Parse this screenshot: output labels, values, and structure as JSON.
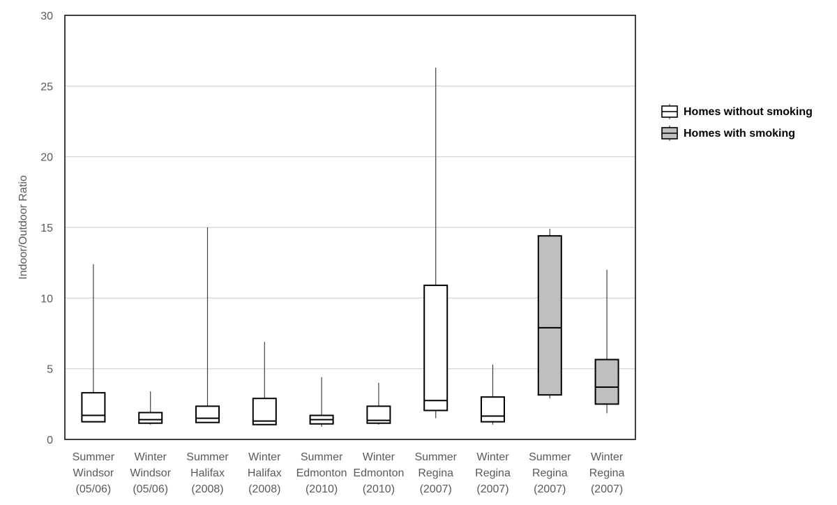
{
  "chart_data": {
    "type": "box",
    "ylabel": "Indoor/Outdoor Ratio",
    "ylim": [
      0,
      30
    ],
    "yticks": [
      0,
      5,
      10,
      15,
      20,
      25,
      30
    ],
    "grid": true,
    "legend_position": "right",
    "categories": [
      [
        "Summer",
        "Windsor",
        "(05/06)"
      ],
      [
        "Winter",
        "Windsor",
        "(05/06)"
      ],
      [
        "Summer",
        "Halifax",
        "(2008)"
      ],
      [
        "Winter",
        "Halifax",
        "(2008)"
      ],
      [
        "Summer",
        "Edmonton",
        "(2010)"
      ],
      [
        "Winter",
        "Edmonton",
        "(2010)"
      ],
      [
        "Summer",
        "Regina",
        "(2007)"
      ],
      [
        "Winter",
        "Regina",
        "(2007)"
      ],
      [
        "Summer",
        "Regina",
        "(2007)"
      ],
      [
        "Winter",
        "Regina",
        "(2007)"
      ]
    ],
    "series": [
      {
        "name": "Homes without smoking",
        "color": "#ffffff",
        "boxes": [
          {
            "category_index": 0,
            "min": 1.2,
            "q1": 1.25,
            "median": 1.7,
            "q3": 3.3,
            "max": 12.4
          },
          {
            "category_index": 1,
            "min": 1.05,
            "q1": 1.15,
            "median": 1.4,
            "q3": 1.9,
            "max": 3.4
          },
          {
            "category_index": 2,
            "min": 1.15,
            "q1": 1.2,
            "median": 1.5,
            "q3": 2.35,
            "max": 15.0
          },
          {
            "category_index": 3,
            "min": 1.0,
            "q1": 1.05,
            "median": 1.3,
            "q3": 2.9,
            "max": 6.9
          },
          {
            "category_index": 4,
            "min": 0.9,
            "q1": 1.1,
            "median": 1.4,
            "q3": 1.7,
            "max": 4.4
          },
          {
            "category_index": 5,
            "min": 1.05,
            "q1": 1.15,
            "median": 1.35,
            "q3": 2.35,
            "max": 4.0
          },
          {
            "category_index": 6,
            "min": 1.5,
            "q1": 2.05,
            "median": 2.75,
            "q3": 10.9,
            "max": 26.3
          },
          {
            "category_index": 7,
            "min": 1.05,
            "q1": 1.25,
            "median": 1.65,
            "q3": 3.0,
            "max": 5.3
          }
        ]
      },
      {
        "name": "Homes with smoking",
        "color": "#bfbfbf",
        "boxes": [
          {
            "category_index": 8,
            "min": 2.9,
            "q1": 3.15,
            "median": 7.9,
            "q3": 14.4,
            "max": 14.9
          },
          {
            "category_index": 9,
            "min": 1.85,
            "q1": 2.5,
            "median": 3.7,
            "q3": 5.65,
            "max": 12.0
          }
        ]
      }
    ]
  }
}
